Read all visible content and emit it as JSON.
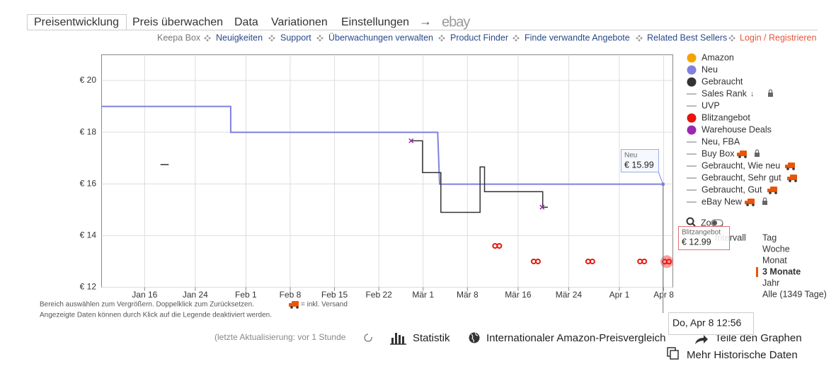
{
  "tabs": [
    "Preisentwicklung",
    "Preis überwachen",
    "Data",
    "Variationen",
    "Einstellungen"
  ],
  "tab_arrow": "→",
  "tab_ebay": "ebay",
  "nav": {
    "label": "Keepa Box",
    "links": [
      "Neuigkeiten",
      "Support",
      "Überwachungen verwalten",
      "Product Finder",
      "Finde verwandte Angebote",
      "Related Best Sellers"
    ],
    "login": "Login / Registrieren"
  },
  "chart_data": {
    "type": "line",
    "xlim": [
      9.2,
      99.45
    ],
    "xticks": [
      {
        "value": 16,
        "label": "Jan 16"
      },
      {
        "value": 24,
        "label": "Jan 24"
      },
      {
        "value": 32,
        "label": "Feb 1"
      },
      {
        "value": 39,
        "label": "Feb 8"
      },
      {
        "value": 46,
        "label": "Feb 15"
      },
      {
        "value": 53,
        "label": "Feb 22"
      },
      {
        "value": 60,
        "label": "Mär 1"
      },
      {
        "value": 67,
        "label": "Mär 8"
      },
      {
        "value": 75,
        "label": "Mär 16"
      },
      {
        "value": 83,
        "label": "Mär 24"
      },
      {
        "value": 91,
        "label": "Apr 1"
      },
      {
        "value": 98,
        "label": "Apr 8"
      }
    ],
    "ylim": [
      12,
      21
    ],
    "yticks": [
      {
        "value": 12,
        "label": "€ 12"
      },
      {
        "value": 14,
        "label": "€ 14"
      },
      {
        "value": 16,
        "label": "€ 16"
      },
      {
        "value": 18,
        "label": "€ 18"
      },
      {
        "value": 20,
        "label": "€ 20"
      }
    ],
    "grid": true,
    "series": [
      {
        "name": "Amazon",
        "color": "#f4a300",
        "style": "step",
        "x": [],
        "values": []
      },
      {
        "name": "Neu",
        "color": "#8080e0",
        "style": "step",
        "x": [
          9.2,
          29.6,
          29.6,
          62.3,
          62.6,
          97.9
        ],
        "values": [
          19,
          19,
          18,
          18,
          15.99,
          15.99
        ]
      },
      {
        "name": "Gebraucht",
        "color": "#333333",
        "style": "step",
        "x": [
          18.5,
          19.8,
          null,
          58.1,
          59.9,
          59.9,
          62.8,
          62.8,
          69.0,
          69.0,
          69.7,
          69.7,
          78.9,
          78.9,
          79.7
        ],
        "values": [
          16.75,
          16.75,
          null,
          17.67,
          17.67,
          16.44,
          16.44,
          14.9,
          14.9,
          16.66,
          16.66,
          15.7,
          15.7,
          15.1,
          15.1
        ]
      },
      {
        "name": "Sales Rank",
        "color": "#bbbbbb",
        "style": "line",
        "x": [],
        "values": []
      },
      {
        "name": "UVP",
        "color": "#bbbbbb",
        "style": "line",
        "x": [],
        "values": []
      },
      {
        "name": "Blitzangebot",
        "color": "#e8150b",
        "style": "double-circle",
        "x": [
          71.7,
          77.8,
          86.4,
          94.6,
          98.5
        ],
        "values": [
          13.6,
          13,
          13,
          13,
          12.99
        ]
      },
      {
        "name": "Warehouse Deals",
        "color": "#9c27b0",
        "style": "cross",
        "x": [
          58.1,
          78.8
        ],
        "values": [
          17.67,
          15.1
        ]
      },
      {
        "name": "Neu, FBA",
        "color": "#bbbbbb",
        "style": "line",
        "x": [],
        "values": []
      },
      {
        "name": "Buy Box",
        "color": "#bbbbbb",
        "style": "line",
        "x": [],
        "values": []
      },
      {
        "name": "Gebraucht, Wie neu",
        "color": "#bbbbbb",
        "style": "line",
        "x": [],
        "values": []
      },
      {
        "name": "Gebraucht, Sehr gut",
        "color": "#bbbbbb",
        "style": "line",
        "x": [],
        "values": []
      },
      {
        "name": "Gebraucht, Gut",
        "color": "#bbbbbb",
        "style": "line",
        "x": [],
        "values": []
      },
      {
        "name": "eBay New",
        "color": "#bbbbbb",
        "style": "line",
        "x": [],
        "values": []
      }
    ],
    "tooltips": [
      {
        "title": "Neu",
        "label": "€ 15.99",
        "x": 97.9,
        "value": 15.99
      },
      {
        "title": "Blitzangebot",
        "label": "€ 12.99",
        "x": 98.5,
        "value": 12.99
      }
    ],
    "crosshair_label": "Do, Apr 8 12:56"
  },
  "notes": {
    "zoom_hint": "Bereich auswählen zum Vergrößern. Doppelklick zum Zurücksetzen.",
    "shipping": "= inkl. Versand",
    "legend_hint": "Angezeigte Daten können durch Klick auf die Legende deaktiviert werden."
  },
  "controls": {
    "zoom": "Zoom",
    "interval": "Intervall",
    "ranges": [
      "Tag",
      "Woche",
      "Monat",
      "3 Monate",
      "Jahr",
      "Alle (1349 Tage)"
    ],
    "selected_range": 3
  },
  "footer": {
    "updated": "(letzte Aktualisierung: vor 1 Stunde",
    "statistik": "Statistik",
    "compare": "Internationaler Amazon-Preisvergleich",
    "share": "Teile den Graphen",
    "more": "Mehr Historische Daten"
  }
}
